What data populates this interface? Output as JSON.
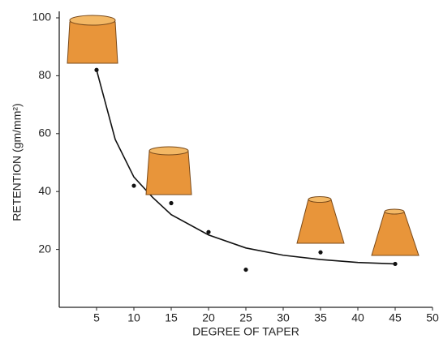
{
  "chart_data": {
    "type": "scatter",
    "xlabel": "DEGREE OF TAPER",
    "ylabel": "RETENTION (gm/mm²)",
    "xlim": [
      0,
      50
    ],
    "ylim": [
      0,
      100
    ],
    "xticks": [
      5,
      10,
      15,
      20,
      25,
      30,
      35,
      40,
      45,
      50
    ],
    "yticks": [
      20,
      40,
      60,
      80,
      100
    ],
    "series": [
      {
        "style": "points",
        "color": "#111111",
        "x": [
          5,
          10,
          15,
          20,
          25,
          35,
          45
        ],
        "values": [
          82,
          42,
          36,
          26,
          13,
          19,
          15
        ]
      },
      {
        "style": "line",
        "color": "#111111",
        "x": [
          5,
          7.5,
          10,
          12.5,
          15,
          20,
          25,
          30,
          35,
          40,
          45
        ],
        "values": [
          82,
          58,
          45,
          38,
          32,
          25,
          20.5,
          18,
          16.5,
          15.5,
          15
        ]
      }
    ]
  }
}
